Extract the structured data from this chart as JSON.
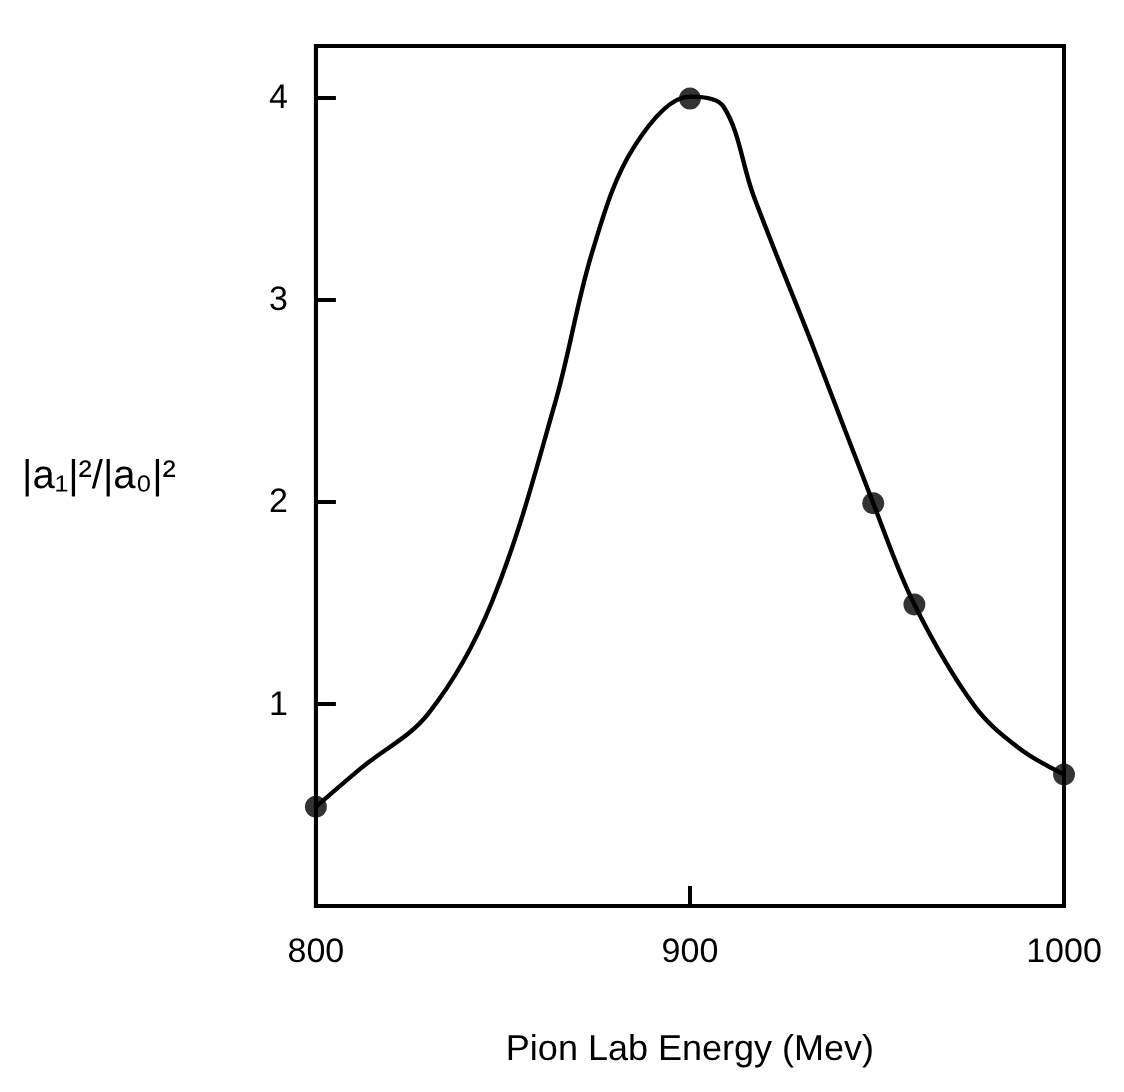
{
  "chart_data": {
    "type": "scatter",
    "xlabel": "Pion Lab Energy (Mev)",
    "ylabel": "|a₁|²/|a₀|²",
    "xlim": [
      800,
      1000
    ],
    "xticks": [
      800,
      900,
      1000
    ],
    "ylim": [
      0,
      4.25
    ],
    "yticks": [
      1,
      2,
      3,
      4
    ],
    "grid": false,
    "marker": "circle",
    "series": [
      {
        "type": "line",
        "color": "#000000",
        "line_style": "solid",
        "marker": "none",
        "x": [
          800,
          812,
          830,
          847,
          864,
          874,
          885,
          900,
          909,
          917,
          933,
          949,
          960,
          976,
          988,
          1000
        ],
        "values": [
          0.49,
          0.68,
          0.95,
          1.5,
          2.49,
          3.24,
          3.75,
          4.0,
          3.95,
          3.51,
          2.76,
          1.99,
          1.49,
          0.99,
          0.78,
          0.65
        ]
      },
      {
        "color": "#000000",
        "x": [
          800,
          900,
          949,
          960,
          1000
        ],
        "values": [
          0.49,
          3.99,
          1.99,
          1.49,
          0.65
        ]
      }
    ]
  }
}
